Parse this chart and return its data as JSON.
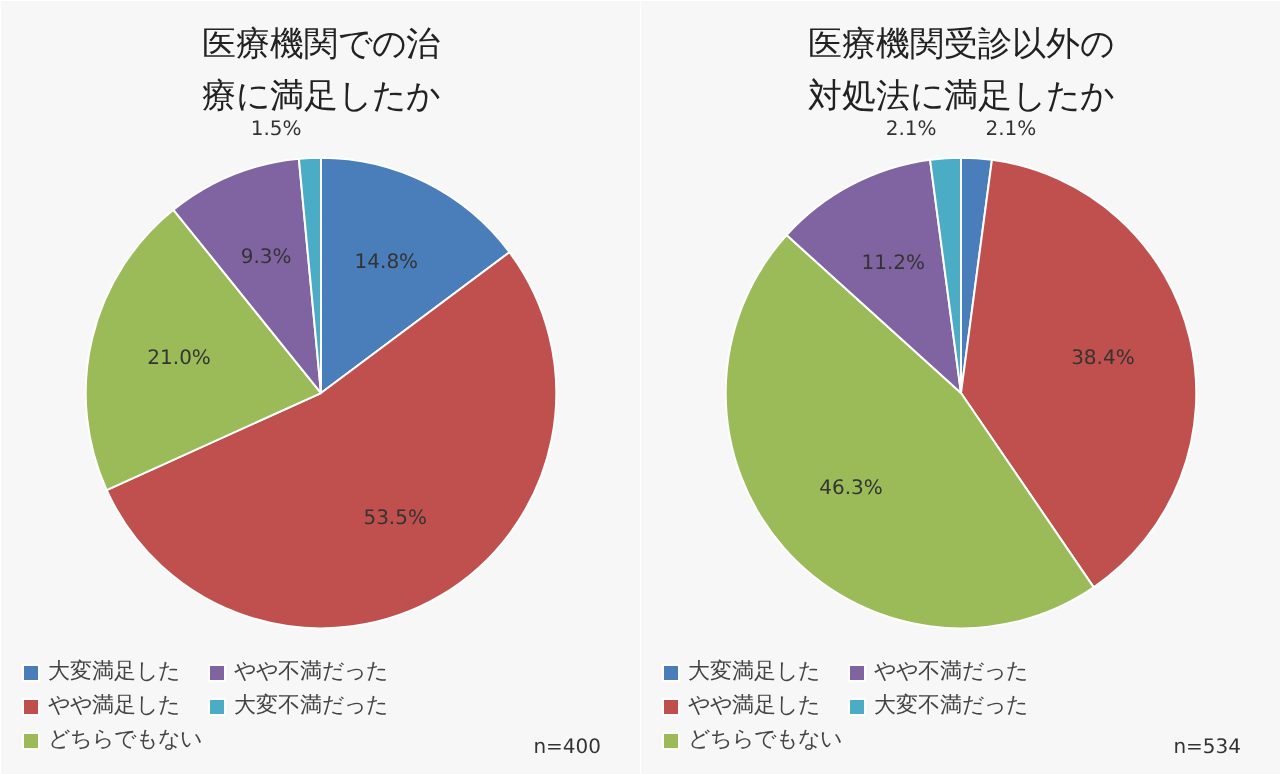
{
  "chart_data": [
    {
      "type": "pie",
      "title": "医療機関での治療に満足したか",
      "categories": [
        "大変満足した",
        "やや満足した",
        "どちらでもない",
        "やや不満だった",
        "大変不満だった"
      ],
      "values": [
        14.8,
        53.5,
        21.0,
        9.3,
        1.5
      ],
      "value_labels": [
        "14.8%",
        "53.5%",
        "21.0%",
        "9.3%",
        "1.5%"
      ],
      "colors": [
        "#4a7ebb",
        "#c0504d",
        "#9bbb59",
        "#8064a2",
        "#4bacc6"
      ],
      "legend": "bottom",
      "annotations": [
        "n=400"
      ]
    },
    {
      "type": "pie",
      "title": "医療機関受診以外の対処法に満足したか",
      "categories": [
        "大変満足した",
        "やや満足した",
        "どちらでもない",
        "やや不満だった",
        "大変不満だった"
      ],
      "values": [
        2.1,
        38.4,
        46.3,
        11.2,
        2.1
      ],
      "value_labels": [
        "2.1%",
        "38.4%",
        "46.3%",
        "11.2%",
        "2.1%"
      ],
      "colors": [
        "#4a7ebb",
        "#c0504d",
        "#9bbb59",
        "#8064a2",
        "#4bacc6"
      ],
      "legend": "bottom",
      "annotations": [
        "n=534"
      ]
    }
  ]
}
